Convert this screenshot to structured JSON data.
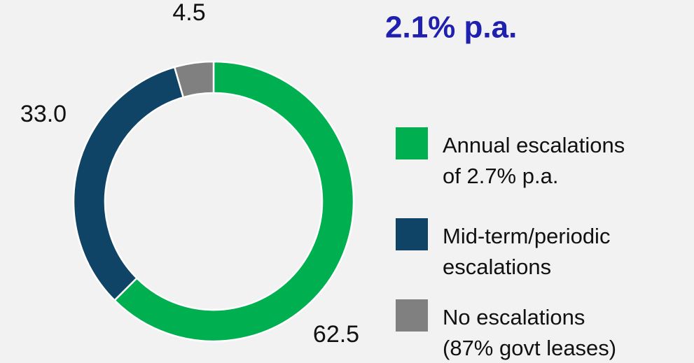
{
  "chart_data": {
    "type": "donut",
    "title": "2.1% p.a.",
    "categories": [
      "Annual escalations of 2.7% p.a.",
      "Mid-term/periodic escalations",
      "No escalations (87% govt leases)"
    ],
    "values": [
      62.5,
      33.0,
      4.5
    ],
    "value_labels": [
      "62.5",
      "33.0",
      "4.5"
    ],
    "colors": [
      "#00b050",
      "#0f4466",
      "#808080"
    ]
  }
}
